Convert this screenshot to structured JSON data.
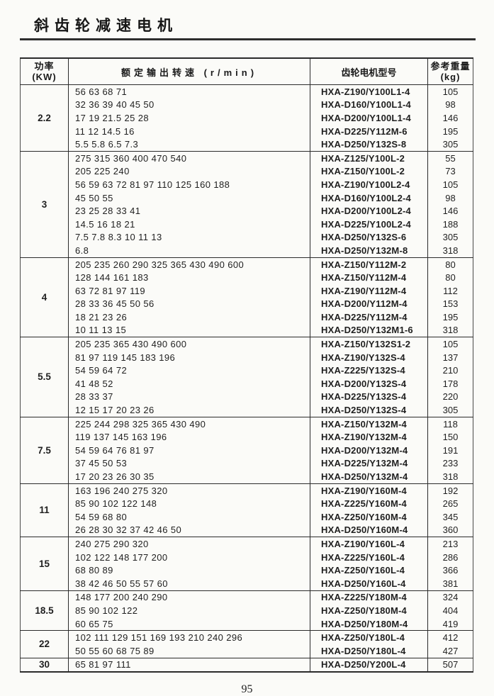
{
  "page": {
    "title": "斜齿轮减速电机",
    "page_number": "95"
  },
  "table": {
    "headers": {
      "power_label": "功率",
      "power_unit": "(KW)",
      "speed_label": "额定输出转速 (r/min)",
      "model_label": "齿轮电机型号",
      "weight_label": "参考重量",
      "weight_unit": "(kg)"
    },
    "sections": [
      {
        "power": "2.2",
        "rows": [
          {
            "speed": "56 63 68 71",
            "model": "HXA-Z190/Y100L1-4",
            "weight": "105"
          },
          {
            "speed": "32 36 39 40 45 50",
            "model": "HXA-D160/Y100L1-4",
            "weight": "98"
          },
          {
            "speed": "17 19 21.5 25 28",
            "model": "HXA-D200/Y100L1-4",
            "weight": "146"
          },
          {
            "speed": "11 12 14.5 16",
            "model": "HXA-D225/Y112M-6",
            "weight": "195"
          },
          {
            "speed": "5.5 5.8 6.5 7.3",
            "model": "HXA-D250/Y132S-8",
            "weight": "305"
          }
        ]
      },
      {
        "power": "3",
        "rows": [
          {
            "speed": "275 315 360 400 470 540",
            "model": "HXA-Z125/Y100L-2",
            "weight": "55"
          },
          {
            "speed": "205 225 240",
            "model": "HXA-Z150/Y100L-2",
            "weight": "73"
          },
          {
            "speed": "56 59 63 72 81 97 110 125 160 188",
            "model": "HXA-Z190/Y100L2-4",
            "weight": "105"
          },
          {
            "speed": "45 50 55",
            "model": "HXA-D160/Y100L2-4",
            "weight": "98"
          },
          {
            "speed": "23 25 28 33 41",
            "model": "HXA-D200/Y100L2-4",
            "weight": "146"
          },
          {
            "speed": "14.5 16 18 21",
            "model": "HXA-D225/Y100L2-4",
            "weight": "188"
          },
          {
            "speed": "7.5 7.8 8.3 10 11 13",
            "model": "HXA-D250/Y132S-6",
            "weight": "305"
          },
          {
            "speed": "6.8",
            "model": "HXA-D250/Y132M-8",
            "weight": "318"
          }
        ]
      },
      {
        "power": "4",
        "rows": [
          {
            "speed": "205 235 260 290 325 365 430 490 600",
            "model": "HXA-Z150/Y112M-2",
            "weight": "80"
          },
          {
            "speed": "128 144 161 183",
            "model": "HXA-Z150/Y112M-4",
            "weight": "80"
          },
          {
            "speed": "63 72 81 97 119",
            "model": "HXA-Z190/Y112M-4",
            "weight": "112"
          },
          {
            "speed": "28 33 36 45 50 56",
            "model": "HXA-D200/Y112M-4",
            "weight": "153"
          },
          {
            "speed": "18 21 23 26",
            "model": "HXA-D225/Y112M-4",
            "weight": "195"
          },
          {
            "speed": "10 11 13 15",
            "model": "HXA-D250/Y132M1-6",
            "weight": "318"
          }
        ]
      },
      {
        "power": "5.5",
        "rows": [
          {
            "speed": "205 235 365 430 490 600",
            "model": "HXA-Z150/Y132S1-2",
            "weight": "105"
          },
          {
            "speed": "81 97 119 145 183 196",
            "model": "HXA-Z190/Y132S-4",
            "weight": "137"
          },
          {
            "speed": "54 59 64 72",
            "model": "HXA-Z225/Y132S-4",
            "weight": "210"
          },
          {
            "speed": "41 48 52",
            "model": "HXA-D200/Y132S-4",
            "weight": "178"
          },
          {
            "speed": "28 33 37",
            "model": "HXA-D225/Y132S-4",
            "weight": "220"
          },
          {
            "speed": "12 15 17 20 23 26",
            "model": "HXA-D250/Y132S-4",
            "weight": "305"
          }
        ]
      },
      {
        "power": "7.5",
        "rows": [
          {
            "speed": "225 244 298 325 365 430 490",
            "model": "HXA-Z150/Y132M-4",
            "weight": "118"
          },
          {
            "speed": "119 137 145 163 196",
            "model": "HXA-Z190/Y132M-4",
            "weight": "150"
          },
          {
            "speed": "54 59 64 76 81 97",
            "model": "HXA-D200/Y132M-4",
            "weight": "191"
          },
          {
            "speed": "37 45 50 53",
            "model": "HXA-D225/Y132M-4",
            "weight": "233"
          },
          {
            "speed": "17 20 23 26 30 35",
            "model": "HXA-D250/Y132M-4",
            "weight": "318"
          }
        ]
      },
      {
        "power": "11",
        "rows": [
          {
            "speed": "163 196 240 275 320",
            "model": "HXA-Z190/Y160M-4",
            "weight": "192"
          },
          {
            "speed": "85 90 102 122 148",
            "model": "HXA-Z225/Y160M-4",
            "weight": "265"
          },
          {
            "speed": "54 59 68 80",
            "model": "HXA-Z250/Y160M-4",
            "weight": "345"
          },
          {
            "speed": "26 28 30 32 37 42 46 50",
            "model": "HXA-D250/Y160M-4",
            "weight": "360"
          }
        ]
      },
      {
        "power": "15",
        "rows": [
          {
            "speed": "240 275 290 320",
            "model": "HXA-Z190/Y160L-4",
            "weight": "213"
          },
          {
            "speed": "102 122 148 177 200",
            "model": "HXA-Z225/Y160L-4",
            "weight": "286"
          },
          {
            "speed": "68 80 89",
            "model": "HXA-Z250/Y160L-4",
            "weight": "366"
          },
          {
            "speed": "38 42 46 50 55 57 60",
            "model": "HXA-D250/Y160L-4",
            "weight": "381"
          }
        ]
      },
      {
        "power": "18.5",
        "rows": [
          {
            "speed": "148 177 200 240 290",
            "model": "HXA-Z225/Y180M-4",
            "weight": "324"
          },
          {
            "speed": "85 90 102 122",
            "model": "HXA-Z250/Y180M-4",
            "weight": "404"
          },
          {
            "speed": "60 65 75",
            "model": "HXA-D250/Y180M-4",
            "weight": "419"
          }
        ]
      },
      {
        "power": "22",
        "rows": [
          {
            "speed": "102 111 129 151 169 193 210 240 296",
            "model": "HXA-Z250/Y180L-4",
            "weight": "412"
          },
          {
            "speed": "50 55 60 68 75 89",
            "model": "HXA-D250/Y180L-4",
            "weight": "427"
          }
        ]
      },
      {
        "power": "30",
        "rows": [
          {
            "speed": "65 81 97 111",
            "model": "HXA-D250/Y200L-4",
            "weight": "507"
          }
        ]
      }
    ]
  }
}
